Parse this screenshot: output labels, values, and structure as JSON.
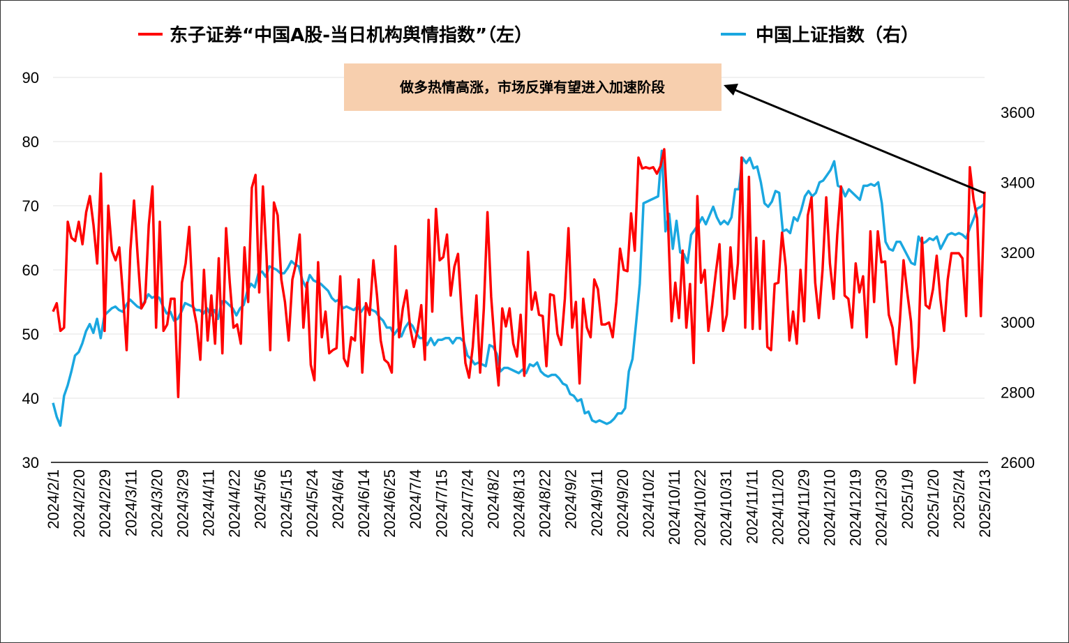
{
  "chart_data": {
    "type": "line",
    "legend_placement": "top",
    "grid": true,
    "series": [
      {
        "name": "东子证券“中国A股-当日机构舆情指数”（左）",
        "axis": "left",
        "color": "#ff0000"
      },
      {
        "name": "中国上证指数（右）",
        "axis": "right",
        "color": "#1aa7e0"
      }
    ],
    "left_axis": {
      "ylim": [
        30,
        90
      ],
      "ticks": [
        "30",
        "40",
        "50",
        "60",
        "70",
        "80",
        "90"
      ]
    },
    "right_axis": {
      "ylim": [
        2600,
        3600
      ],
      "ticks": [
        "2600",
        "2800",
        "3000",
        "3200",
        "3400",
        "3600"
      ]
    },
    "x_tick_labels": [
      "2024/2/1",
      "2024/2/20",
      "2024/2/29",
      "2024/3/11",
      "2024/3/20",
      "2024/3/29",
      "2024/4/11",
      "2024/4/22",
      "2024/5/6",
      "2024/5/15",
      "2024/5/24",
      "2024/6/4",
      "2024/6/14",
      "2024/6/25",
      "2024/7/4",
      "2024/7/15",
      "2024/7/24",
      "2024/8/2",
      "2024/8/13",
      "2024/8/22",
      "2024/9/2",
      "2024/9/11",
      "2024/9/20",
      "2024/10/2",
      "2024/10/11",
      "2024/10/22",
      "2024/10/31",
      "2024/11/11",
      "2024/11/20",
      "2024/11/29",
      "2024/12/10",
      "2024/12/19",
      "2024/12/30",
      "2025/1/9",
      "2025/1/20",
      "2025/2/4",
      "2025/2/13"
    ],
    "sentiment_values": [
      53.5,
      54.8,
      50.5,
      51,
      67.5,
      65,
      64.5,
      67.5,
      64,
      69,
      71.5,
      67,
      61,
      75,
      50.5,
      70,
      63,
      61.5,
      63.5,
      56,
      47.5,
      63,
      70.8,
      62,
      54,
      55,
      67,
      73,
      51,
      67.5,
      50.5,
      51.5,
      55.5,
      55.5,
      40.2,
      58,
      61,
      66.7,
      54.5,
      51.5,
      46,
      60,
      49,
      56,
      48.5,
      61.8,
      47,
      66.5,
      58,
      51,
      51.5,
      48.5,
      63.5,
      55,
      72.8,
      74.8,
      56.5,
      73,
      62,
      47.5,
      70.5,
      68.5,
      58.5,
      55,
      49,
      58.5,
      61,
      65.5,
      51,
      58,
      45.2,
      42.8,
      61.2,
      49.5,
      53.5,
      47,
      47.5,
      47.8,
      59,
      46.2,
      45,
      49.5,
      49,
      58.5,
      44,
      54.8,
      53,
      61.5,
      56,
      49,
      46,
      45.5,
      44,
      63.7,
      49.5,
      54,
      56.8,
      51,
      48,
      50.5,
      54.5,
      46,
      67.8,
      53.5,
      69.5,
      61.5,
      62,
      65.5,
      56,
      60.5,
      62.5,
      53,
      45.5,
      43.2,
      48,
      56,
      44,
      54,
      69,
      55.8,
      48,
      42,
      54,
      51.2,
      54,
      48.5,
      46.5,
      53,
      43.5,
      62.8,
      53.8,
      56.5,
      53,
      52.8,
      45,
      56.2,
      56,
      50,
      48.3,
      55.5,
      66.5,
      51,
      55,
      42.3,
      55.5,
      51,
      49.5,
      58.5,
      57,
      51.5,
      51.5,
      51.8,
      49.5,
      55,
      63.3,
      60,
      59.8,
      68.8,
      63,
      77.5,
      75.8,
      76,
      75.8,
      76,
      75,
      76.2,
      78.8,
      68,
      52,
      58,
      52.5,
      63,
      51,
      57.8,
      45.5,
      71.5,
      58,
      60,
      50.5,
      54.5,
      59.5,
      64,
      50.5,
      53,
      63.5,
      55.5,
      61,
      77.5,
      51,
      74.5,
      50.8,
      65,
      50.8,
      64.5,
      48,
      47.5,
      57.8,
      58,
      65.8,
      60.5,
      49,
      53.5,
      48.5,
      60,
      52,
      68.5,
      71.3,
      58,
      52.5,
      60,
      71.3,
      61,
      55.5,
      65.5,
      73,
      56,
      55.5,
      51,
      61,
      56.5,
      59,
      49.5,
      66,
      55,
      66,
      61.2,
      61.3,
      53,
      51,
      45.3,
      52,
      61.5,
      56.5,
      52,
      42.4,
      48,
      65,
      54.5,
      54,
      57,
      62.2,
      55.5,
      50.5,
      58.5,
      62.6,
      62.6,
      62.6,
      61.8,
      52.8,
      76,
      71,
      68,
      52.8,
      72.2
    ],
    "index_values": [
      2770,
      2730,
      2705,
      2790,
      2820,
      2860,
      2905,
      2915,
      2940,
      2975,
      2995,
      2970,
      3010,
      2955,
      3020,
      3030,
      3040,
      3045,
      3035,
      3030,
      3050,
      3065,
      3055,
      3045,
      3040,
      3060,
      3080,
      3070,
      3075,
      3070,
      3045,
      3025,
      3030,
      3005,
      3010,
      3030,
      3055,
      3050,
      3045,
      3035,
      3035,
      3025,
      3040,
      3020,
      3035,
      3010,
      3060,
      3060,
      3050,
      3040,
      3020,
      3040,
      3050,
      3090,
      3110,
      3100,
      3140,
      3145,
      3130,
      3160,
      3155,
      3150,
      3140,
      3140,
      3155,
      3175,
      3165,
      3160,
      3120,
      3100,
      3135,
      3120,
      3115,
      3110,
      3100,
      3090,
      3070,
      3060,
      3065,
      3040,
      3045,
      3040,
      3035,
      3045,
      3030,
      3045,
      3040,
      3035,
      3030,
      3015,
      3005,
      2985,
      2985,
      2965,
      2980,
      2960,
      2985,
      3000,
      2990,
      2970,
      2955,
      2955,
      2935,
      2955,
      2935,
      2950,
      2950,
      2955,
      2955,
      2940,
      2955,
      2955,
      2945,
      2905,
      2895,
      2880,
      2885,
      2880,
      2875,
      2935,
      2930,
      2910,
      2860,
      2870,
      2870,
      2865,
      2860,
      2855,
      2865,
      2855,
      2880,
      2875,
      2885,
      2860,
      2850,
      2845,
      2850,
      2850,
      2840,
      2825,
      2820,
      2795,
      2790,
      2775,
      2780,
      2740,
      2745,
      2720,
      2715,
      2720,
      2715,
      2710,
      2715,
      2725,
      2740,
      2740,
      2755,
      2860,
      2895,
      3000,
      3110,
      3340,
      3345,
      3350,
      3355,
      3360,
      3490,
      3260,
      3310,
      3210,
      3290,
      3200,
      3195,
      3170,
      3250,
      3265,
      3280,
      3300,
      3280,
      3305,
      3330,
      3300,
      3280,
      3290,
      3280,
      3300,
      3380,
      3380,
      3470,
      3455,
      3470,
      3440,
      3445,
      3400,
      3340,
      3330,
      3345,
      3375,
      3370,
      3260,
      3265,
      3255,
      3300,
      3290,
      3320,
      3360,
      3375,
      3360,
      3370,
      3400,
      3405,
      3420,
      3435,
      3460,
      3390,
      3385,
      3360,
      3380,
      3370,
      3360,
      3350,
      3390,
      3390,
      3395,
      3390,
      3400,
      3340,
      3230,
      3210,
      3205,
      3230,
      3230,
      3210,
      3190,
      3170,
      3165,
      3245,
      3225,
      3230,
      3240,
      3235,
      3245,
      3210,
      3230,
      3250,
      3255,
      3250,
      3255,
      3250,
      3240,
      3270,
      3295,
      3325,
      3330,
      3340
    ]
  },
  "annotation": {
    "text": "做多热情高涨，市场反弹有望进入加速阶段"
  }
}
